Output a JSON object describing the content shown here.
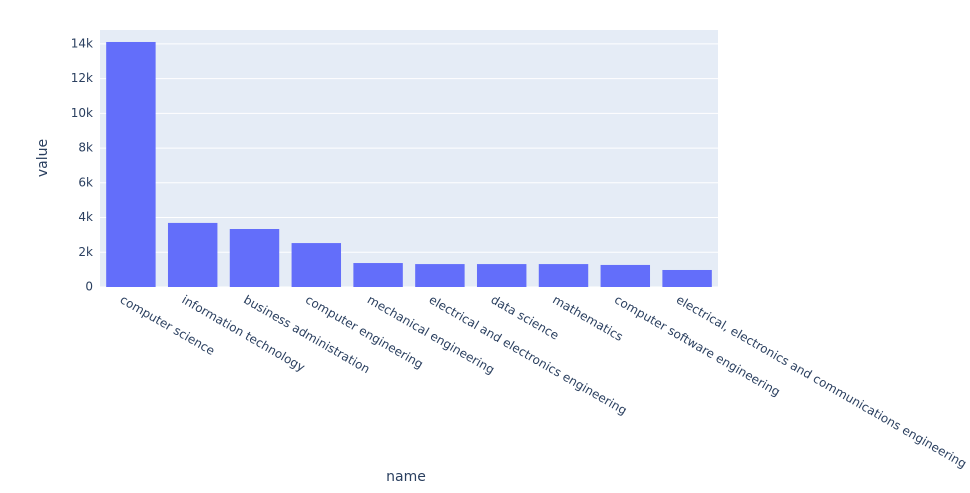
{
  "chart_data": {
    "type": "bar",
    "x_label": "name",
    "y_label": "value",
    "categories": [
      "computer science",
      "information technology",
      "business administration",
      "computer engineering",
      "mechanical engineering",
      "electrical and electronics engineering",
      "data science",
      "mathematics",
      "computer software engineering",
      "electrical, electronics and communications engineering"
    ],
    "values": [
      14110,
      3690,
      3340,
      2530,
      1380,
      1320,
      1320,
      1320,
      1270,
      980
    ],
    "color": "#636efa",
    "ylim": [
      0,
      14800
    ],
    "yticks": [
      0,
      {
        "value": 2000,
        "label": "2k"
      },
      {
        "value": 4000,
        "label": "4k"
      },
      {
        "value": 6000,
        "label": "6k"
      },
      {
        "value": 8000,
        "label": "8k"
      },
      {
        "value": 10000,
        "label": "10k"
      },
      {
        "value": 12000,
        "label": "12k"
      },
      {
        "value": 14000,
        "label": "14k"
      }
    ],
    "grid": true
  }
}
